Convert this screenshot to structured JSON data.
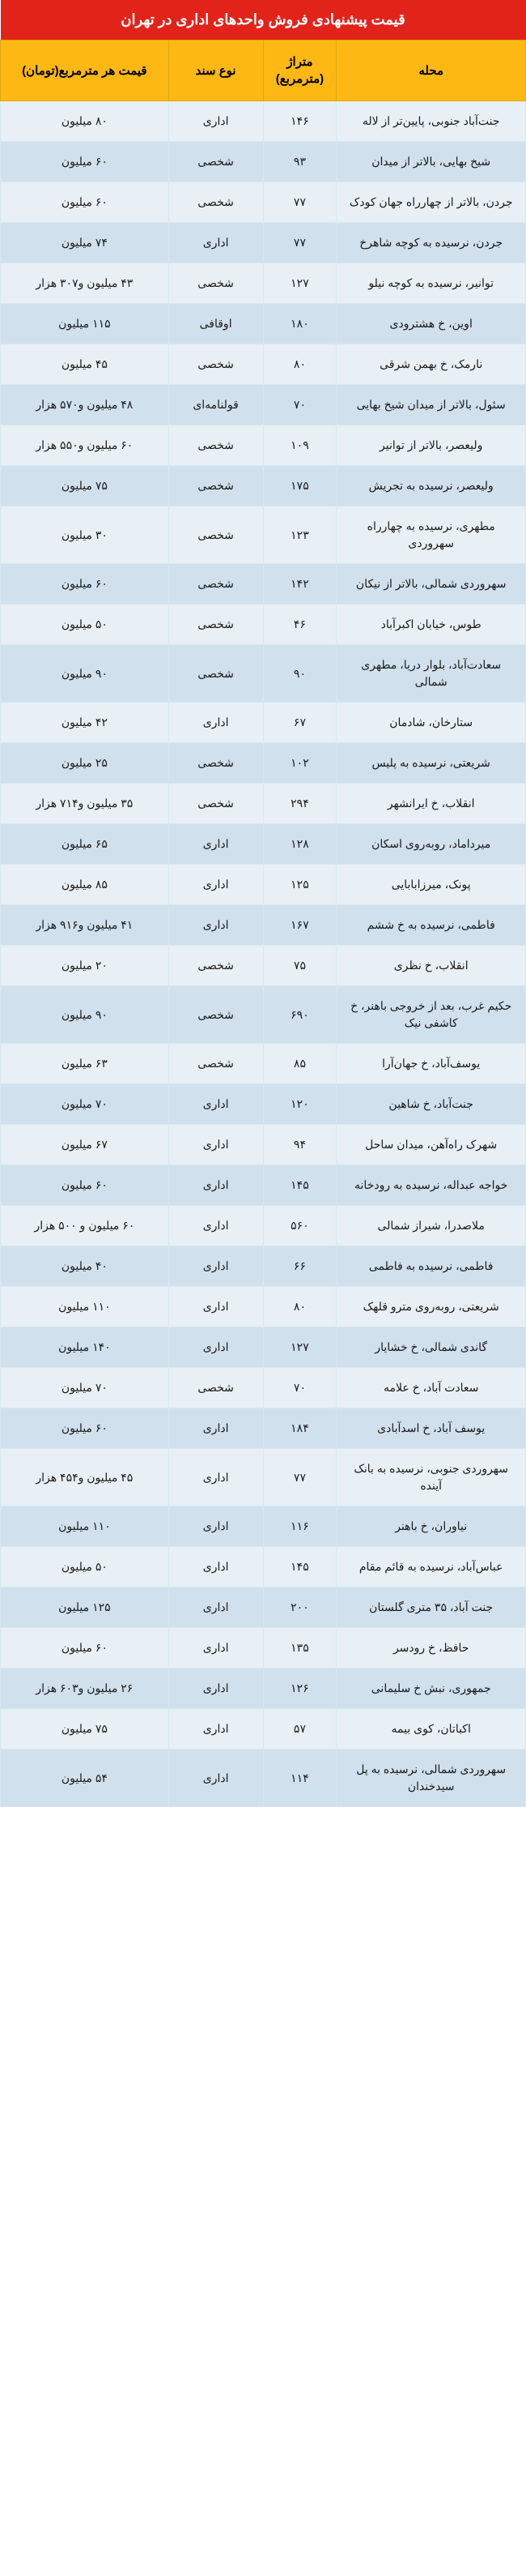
{
  "title": "قیمت پیشنهادی فروش واحدهای اداری در تهران",
  "columns": [
    "محله",
    "متراژ (مترمربع)",
    "نوع سند",
    "قیمت هر مترمربع(تومان)"
  ],
  "colors": {
    "title_bg": "#e2231a",
    "title_fg": "#ffffff",
    "header_bg": "#fdb813",
    "header_fg": "#000000",
    "row_odd_bg": "#e8f0f5",
    "row_even_bg": "#d0e0ec",
    "border": "#d8e8f0"
  },
  "typography": {
    "title_fontsize": 18,
    "header_fontsize": 15,
    "cell_fontsize": 14,
    "font_family": "Tahoma"
  },
  "col_widths_pct": [
    36,
    14,
    18,
    32
  ],
  "rows": [
    [
      "جنت‌آباد جنوبی، پایین‌تر از لاله",
      "۱۴۶",
      "اداری",
      "۸۰ میلیون"
    ],
    [
      "شیخ بهایی، بالاتر از میدان",
      "۹۳",
      "شخصی",
      "۶۰ میلیون"
    ],
    [
      "جردن، بالاتر از چهارراه جهان کودک",
      "۷۷",
      "شخصی",
      "۶۰ میلیون"
    ],
    [
      "جردن، نرسیده به کوچه شاهرخ",
      "۷۷",
      "اداری",
      "۷۴ میلیون"
    ],
    [
      "توانیر، نرسیده به کوچه نیلو",
      "۱۲۷",
      "شخصی",
      "۴۳ میلیون و۳۰۷ هزار"
    ],
    [
      "اوین، خ هشترودی",
      "۱۸۰",
      "اوقافی",
      "۱۱۵ میلیون"
    ],
    [
      "نارمک، خ بهمن شرقی",
      "۸۰",
      "شخصی",
      "۴۵ میلیون"
    ],
    [
      "سئول، بالاتر از میدان شیخ بهایی",
      "۷۰",
      "قولنامه‌ای",
      "۴۸ میلیون و۵۷۰ هزار"
    ],
    [
      "ولیعصر، بالاتر از توانیر",
      "۱۰۹",
      "شخصی",
      "۶۰ میلیون و۵۵۰ هزار"
    ],
    [
      "ولیعصر، نرسیده به تجریش",
      "۱۷۵",
      "شخصی",
      "۷۵ میلیون"
    ],
    [
      "مطهری، نرسیده به چهارراه سهروردی",
      "۱۲۳",
      "شخصی",
      "۳۰ میلیون"
    ],
    [
      "سهروردی شمالی، بالاتر از نیکان",
      "۱۴۲",
      "شخصی",
      "۶۰ میلیون"
    ],
    [
      "طوس، خیابان اکبرآباد",
      "۴۶",
      "شخصی",
      "۵۰ میلیون"
    ],
    [
      "سعادت‌آباد، بلوار دریا، مطهری شمالی",
      "۹۰",
      "شخصی",
      "۹۰ میلیون"
    ],
    [
      "ستارخان، شادمان",
      "۶۷",
      "اداری",
      "۴۲ میلیون"
    ],
    [
      "شریعتی، نرسیده به پلیس",
      "۱۰۲",
      "شخصی",
      "۲۵ میلیون"
    ],
    [
      "انقلاب، خ ایرانشهر",
      "۲۹۴",
      "شخصی",
      "۳۵ میلیون و۷۱۴ هزار"
    ],
    [
      "میرداماد، روبه‌روی اسکان",
      "۱۲۸",
      "اداری",
      "۶۵ میلیون"
    ],
    [
      "پونک، میرزابابایی",
      "۱۲۵",
      "اداری",
      "۸۵ میلیون"
    ],
    [
      "فاطمی، نرسیده به خ ششم",
      "۱۶۷",
      "اداری",
      "۴۱ میلیون و۹۱۶ هزار"
    ],
    [
      "انقلاب، خ نظری",
      "۷۵",
      "شخصی",
      "۲۰ میلیون"
    ],
    [
      "حکیم غرب، بعد از خروجی باهنر، خ کاشفی نیک",
      "۶۹۰",
      "شخصی",
      "۹۰ میلیون"
    ],
    [
      "یوسف‌آباد، خ جهان‌آرا",
      "۸۵",
      "شخصی",
      "۶۳ میلیون"
    ],
    [
      "جنت‌آباد، خ شاهین",
      "۱۲۰",
      "اداری",
      "۷۰ میلیون"
    ],
    [
      "شهرک راه‌آهن، میدان ساحل",
      "۹۴",
      "اداری",
      "۶۷ میلیون"
    ],
    [
      "خواجه عبداله، نرسیده به رودخانه",
      "۱۴۵",
      "اداری",
      "۶۰ میلیون"
    ],
    [
      "ملاصدرا، شیراز شمالی",
      "۵۶۰",
      "اداری",
      "۶۰ میلیون و ۵۰۰ هزار"
    ],
    [
      "فاطمی، نرسیده به فاطمی",
      "۶۶",
      "اداری",
      "۴۰ میلیون"
    ],
    [
      "شریعتی، روبه‌روی مترو قلهک",
      "۸۰",
      "اداری",
      "۱۱۰ میلیون"
    ],
    [
      "گاندی شمالی، خ خشایار",
      "۱۲۷",
      "اداری",
      "۱۴۰ میلیون"
    ],
    [
      "سعادت آباد، خ علامه",
      "۷۰",
      "شخصی",
      "۷۰ میلیون"
    ],
    [
      "یوسف آباد، خ اسدآبادی",
      "۱۸۴",
      "اداری",
      "۶۰ میلیون"
    ],
    [
      "سهروردی جنوبی، نرسیده به بانک آینده",
      "۷۷",
      "اداری",
      "۴۵ میلیون و۴۵۴ هزار"
    ],
    [
      "نیاوران، خ باهنر",
      "۱۱۶",
      "اداری",
      "۱۱۰ میلیون"
    ],
    [
      "عباس‌آباد، نرسیده به قائم مقام",
      "۱۴۵",
      "اداری",
      "۵۰ میلیون"
    ],
    [
      "جنت آباد، ۳۵ متری گلستان",
      "۲۰۰",
      "اداری",
      "۱۲۵ میلیون"
    ],
    [
      "حافظ، خ رودسر",
      "۱۳۵",
      "اداری",
      "۶۰ میلیون"
    ],
    [
      "جمهوری، نبش خ سلیمانی",
      "۱۲۶",
      "اداری",
      "۲۶ میلیون و۶۰۳ هزار"
    ],
    [
      "اکباتان، کوی بیمه",
      "۵۷",
      "اداری",
      "۷۵ میلیون"
    ],
    [
      "سهروردی شمالی، نرسیده به پل سیدخندان",
      "۱۱۴",
      "اداری",
      "۵۴ میلیون"
    ]
  ]
}
